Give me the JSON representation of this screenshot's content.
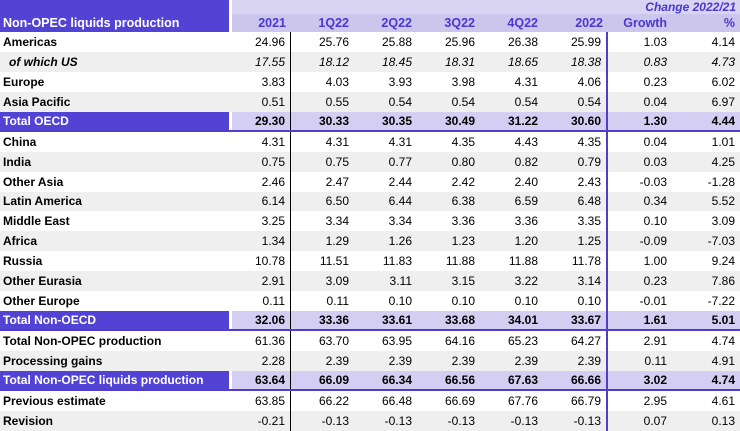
{
  "table": {
    "title": "Non-OPEC liquids production",
    "change_header": "Change 2022/21",
    "columns": [
      "2021",
      "1Q22",
      "2Q22",
      "3Q22",
      "4Q22",
      "2022",
      "Growth",
      "%"
    ],
    "rows": [
      {
        "label": "Americas",
        "style": "plain",
        "italic": false,
        "values": [
          "24.96",
          "25.76",
          "25.88",
          "25.96",
          "26.38",
          "25.99",
          "1.03",
          "4.14"
        ]
      },
      {
        "label": "of which US",
        "style": "alt",
        "italic": true,
        "values": [
          "17.55",
          "18.12",
          "18.45",
          "18.31",
          "18.65",
          "18.38",
          "0.83",
          "4.73"
        ]
      },
      {
        "label": "Europe",
        "style": "plain",
        "italic": false,
        "values": [
          "3.83",
          "4.03",
          "3.93",
          "3.98",
          "4.31",
          "4.06",
          "0.23",
          "6.02"
        ]
      },
      {
        "label": "Asia Pacific",
        "style": "alt",
        "italic": false,
        "values": [
          "0.51",
          "0.55",
          "0.54",
          "0.54",
          "0.54",
          "0.54",
          "0.04",
          "6.97"
        ]
      },
      {
        "label": "Total OECD",
        "style": "total",
        "italic": false,
        "values": [
          "29.30",
          "30.33",
          "30.35",
          "30.49",
          "31.22",
          "30.60",
          "1.30",
          "4.44"
        ]
      },
      {
        "label": "China",
        "style": "plain",
        "italic": false,
        "values": [
          "4.31",
          "4.31",
          "4.31",
          "4.35",
          "4.43",
          "4.35",
          "0.04",
          "1.01"
        ]
      },
      {
        "label": "India",
        "style": "alt",
        "italic": false,
        "values": [
          "0.75",
          "0.75",
          "0.77",
          "0.80",
          "0.82",
          "0.79",
          "0.03",
          "4.25"
        ]
      },
      {
        "label": "Other Asia",
        "style": "plain",
        "italic": false,
        "values": [
          "2.46",
          "2.47",
          "2.44",
          "2.42",
          "2.40",
          "2.43",
          "-0.03",
          "-1.28"
        ]
      },
      {
        "label": "Latin America",
        "style": "alt",
        "italic": false,
        "values": [
          "6.14",
          "6.50",
          "6.44",
          "6.38",
          "6.59",
          "6.48",
          "0.34",
          "5.52"
        ]
      },
      {
        "label": "Middle East",
        "style": "plain",
        "italic": false,
        "values": [
          "3.25",
          "3.34",
          "3.34",
          "3.36",
          "3.36",
          "3.35",
          "0.10",
          "3.09"
        ]
      },
      {
        "label": "Africa",
        "style": "alt",
        "italic": false,
        "values": [
          "1.34",
          "1.29",
          "1.26",
          "1.23",
          "1.20",
          "1.25",
          "-0.09",
          "-7.03"
        ]
      },
      {
        "label": "Russia",
        "style": "plain",
        "italic": false,
        "values": [
          "10.78",
          "11.51",
          "11.83",
          "11.88",
          "11.88",
          "11.78",
          "1.00",
          "9.24"
        ]
      },
      {
        "label": "Other Eurasia",
        "style": "alt",
        "italic": false,
        "values": [
          "2.91",
          "3.09",
          "3.11",
          "3.15",
          "3.22",
          "3.14",
          "0.23",
          "7.86"
        ]
      },
      {
        "label": "Other Europe",
        "style": "plain",
        "italic": false,
        "values": [
          "0.11",
          "0.11",
          "0.10",
          "0.10",
          "0.10",
          "0.10",
          "-0.01",
          "-7.22"
        ]
      },
      {
        "label": "Total Non-OECD",
        "style": "total",
        "italic": false,
        "values": [
          "32.06",
          "33.36",
          "33.61",
          "33.68",
          "34.01",
          "33.67",
          "1.61",
          "5.01"
        ]
      },
      {
        "label": "Total Non-OPEC production",
        "style": "plain",
        "italic": false,
        "values": [
          "61.36",
          "63.70",
          "63.95",
          "64.16",
          "65.23",
          "64.27",
          "2.91",
          "4.74"
        ]
      },
      {
        "label": "Processing gains",
        "style": "alt",
        "italic": false,
        "values": [
          "2.28",
          "2.39",
          "2.39",
          "2.39",
          "2.39",
          "2.39",
          "0.11",
          "4.91"
        ]
      },
      {
        "label": "Total Non-OPEC liquids production",
        "style": "total",
        "italic": false,
        "values": [
          "63.64",
          "66.09",
          "66.34",
          "66.56",
          "67.63",
          "66.66",
          "3.02",
          "4.74"
        ]
      },
      {
        "label": "Previous estimate",
        "style": "plain",
        "italic": false,
        "values": [
          "63.85",
          "66.22",
          "66.48",
          "66.69",
          "67.76",
          "66.79",
          "2.95",
          "4.61"
        ]
      },
      {
        "label": "Revision",
        "style": "alt",
        "italic": false,
        "values": [
          "-0.21",
          "-0.13",
          "-0.13",
          "-0.13",
          "-0.13",
          "-0.13",
          "0.07",
          "0.13"
        ]
      }
    ],
    "colors": {
      "header_purple": "#5343D4",
      "line_purple": "#4F3EC8",
      "header_text_purple": "#4A38D0",
      "lavender_header": "#CCC6EC",
      "lavender_strip": "#D8D4F1",
      "lavender_total": "#D3CEF2",
      "alt_row_gray": "#EFEFEF",
      "separator_black": "#000000"
    }
  }
}
